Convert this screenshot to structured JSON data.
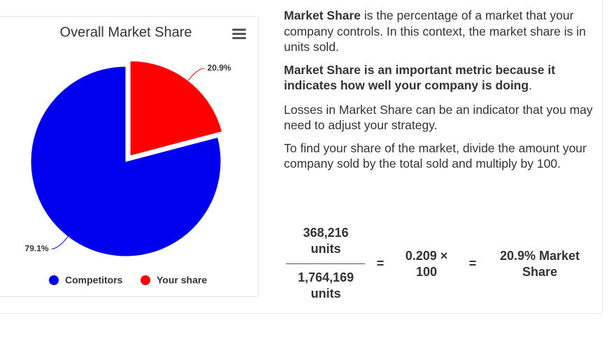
{
  "chart_data": {
    "type": "pie",
    "title": "Overall Market Share",
    "categories": [
      "Competitors",
      "Your share"
    ],
    "values": [
      79.1,
      20.9
    ],
    "value_labels": [
      "79.1%",
      "20.9%"
    ],
    "colors": [
      "#0000ee",
      "#ff0000"
    ]
  },
  "text": {
    "p1": {
      "bold": "Market Share",
      "rest": " is the percentage of a market that your company controls. In this context, the market share is in units sold."
    },
    "p2": {
      "bold": "Market Share is an important metric because it indicates how well your company is doing",
      "rest": "."
    },
    "p3": "Losses in Market Share can be an indicator that you may need to adjust your strategy.",
    "p4": "To find your share of the market, divide the amount your company sold by the total sold and multiply by 100."
  },
  "formula": {
    "numerator": "368,216 units",
    "denominator": "1,764,169 units",
    "equals": "=",
    "product": "0.209 × 100",
    "result": "20.9% Market Share"
  }
}
